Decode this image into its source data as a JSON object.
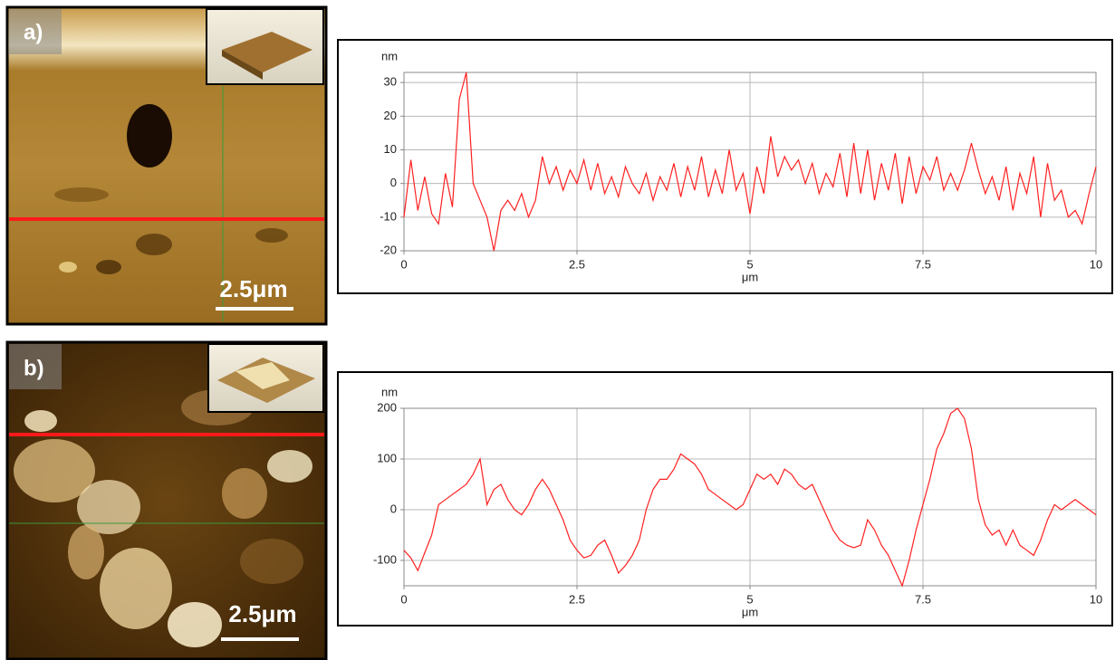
{
  "chart_data": [
    {
      "type": "line",
      "panel_label": "a)",
      "scale_bar": "2.5μm",
      "y_label": "nm",
      "x_label": "μm",
      "color": "#ff2020",
      "xlim": [
        0,
        10
      ],
      "xticks": [
        0,
        2.5,
        5,
        7.5,
        10
      ],
      "ylim": [
        -20,
        33
      ],
      "yticks": [
        -20,
        -10,
        0,
        10,
        20,
        30
      ],
      "grid": true,
      "x": [
        0,
        0.1,
        0.2,
        0.3,
        0.4,
        0.5,
        0.6,
        0.7,
        0.8,
        0.9,
        1,
        1.1,
        1.2,
        1.3,
        1.4,
        1.5,
        1.6,
        1.7,
        1.8,
        1.9,
        2,
        2.1,
        2.2,
        2.3,
        2.4,
        2.5,
        2.6,
        2.7,
        2.8,
        2.9,
        3,
        3.1,
        3.2,
        3.3,
        3.4,
        3.5,
        3.6,
        3.7,
        3.8,
        3.9,
        4,
        4.1,
        4.2,
        4.3,
        4.4,
        4.5,
        4.6,
        4.7,
        4.8,
        4.9,
        5,
        5.1,
        5.2,
        5.3,
        5.4,
        5.5,
        5.6,
        5.7,
        5.8,
        5.9,
        6,
        6.1,
        6.2,
        6.3,
        6.4,
        6.5,
        6.6,
        6.7,
        6.8,
        6.9,
        7,
        7.1,
        7.2,
        7.3,
        7.4,
        7.5,
        7.6,
        7.7,
        7.8,
        7.9,
        8,
        8.1,
        8.2,
        8.3,
        8.4,
        8.5,
        8.6,
        8.7,
        8.8,
        8.9,
        9,
        9.1,
        9.2,
        9.3,
        9.4,
        9.5,
        9.6,
        9.7,
        9.8,
        9.9,
        10
      ],
      "values": [
        -10,
        7,
        -8,
        2,
        -9,
        -12,
        3,
        -7,
        25,
        33,
        0,
        -5,
        -10,
        -20,
        -8,
        -5,
        -8,
        -3,
        -10,
        -5,
        8,
        0,
        5,
        -2,
        4,
        0,
        7,
        -2,
        6,
        -3,
        2,
        -4,
        5,
        0,
        -3,
        3,
        -5,
        2,
        -2,
        6,
        -4,
        5,
        -2,
        8,
        -4,
        4,
        -3,
        10,
        -2,
        3,
        -9,
        5,
        -3,
        14,
        2,
        8,
        4,
        7,
        0,
        6,
        -3,
        3,
        -1,
        9,
        -4,
        12,
        -3,
        10,
        -5,
        6,
        -2,
        9,
        -6,
        8,
        -3,
        5,
        1,
        8,
        -2,
        3,
        -2,
        4,
        12,
        4,
        -3,
        2,
        -5,
        5,
        -8,
        3,
        -3,
        8,
        -10,
        6,
        -5,
        -2,
        -10,
        -8,
        -12,
        -3,
        5
      ]
    },
    {
      "type": "line",
      "panel_label": "b)",
      "scale_bar": "2.5μm",
      "y_label": "nm",
      "x_label": "μm",
      "color": "#ff2020",
      "xlim": [
        0,
        10
      ],
      "xticks": [
        0,
        2.5,
        5,
        7.5,
        10
      ],
      "ylim": [
        -150,
        200
      ],
      "yticks": [
        -100,
        0,
        100,
        200
      ],
      "grid": true,
      "x": [
        0,
        0.1,
        0.2,
        0.3,
        0.4,
        0.5,
        0.6,
        0.7,
        0.8,
        0.9,
        1,
        1.1,
        1.2,
        1.3,
        1.4,
        1.5,
        1.6,
        1.7,
        1.8,
        1.9,
        2,
        2.1,
        2.2,
        2.3,
        2.4,
        2.5,
        2.6,
        2.7,
        2.8,
        2.9,
        3,
        3.1,
        3.2,
        3.3,
        3.4,
        3.5,
        3.6,
        3.7,
        3.8,
        3.9,
        4,
        4.1,
        4.2,
        4.3,
        4.4,
        4.5,
        4.6,
        4.7,
        4.8,
        4.9,
        5,
        5.1,
        5.2,
        5.3,
        5.4,
        5.5,
        5.6,
        5.7,
        5.8,
        5.9,
        6,
        6.1,
        6.2,
        6.3,
        6.4,
        6.5,
        6.6,
        6.7,
        6.8,
        6.9,
        7,
        7.1,
        7.2,
        7.3,
        7.4,
        7.5,
        7.6,
        7.7,
        7.8,
        7.9,
        8,
        8.1,
        8.2,
        8.3,
        8.4,
        8.5,
        8.6,
        8.7,
        8.8,
        8.9,
        9,
        9.1,
        9.2,
        9.3,
        9.4,
        9.5,
        9.6,
        9.7,
        9.8,
        9.9,
        10
      ],
      "values": [
        -80,
        -95,
        -120,
        -85,
        -50,
        10,
        20,
        30,
        40,
        50,
        70,
        100,
        10,
        40,
        50,
        20,
        0,
        -10,
        10,
        40,
        60,
        40,
        10,
        -20,
        -60,
        -80,
        -95,
        -90,
        -70,
        -60,
        -90,
        -125,
        -110,
        -90,
        -60,
        0,
        40,
        60,
        60,
        80,
        110,
        100,
        90,
        70,
        40,
        30,
        20,
        10,
        0,
        10,
        40,
        70,
        60,
        70,
        50,
        80,
        70,
        50,
        40,
        50,
        20,
        -10,
        -40,
        -60,
        -70,
        -75,
        -70,
        -20,
        -40,
        -70,
        -90,
        -120,
        -150,
        -100,
        -40,
        10,
        60,
        120,
        150,
        190,
        200,
        180,
        120,
        20,
        -30,
        -50,
        -40,
        -70,
        -40,
        -70,
        -80,
        -90,
        -60,
        -20,
        10,
        0,
        10,
        20,
        10,
        0,
        -10
      ]
    }
  ]
}
